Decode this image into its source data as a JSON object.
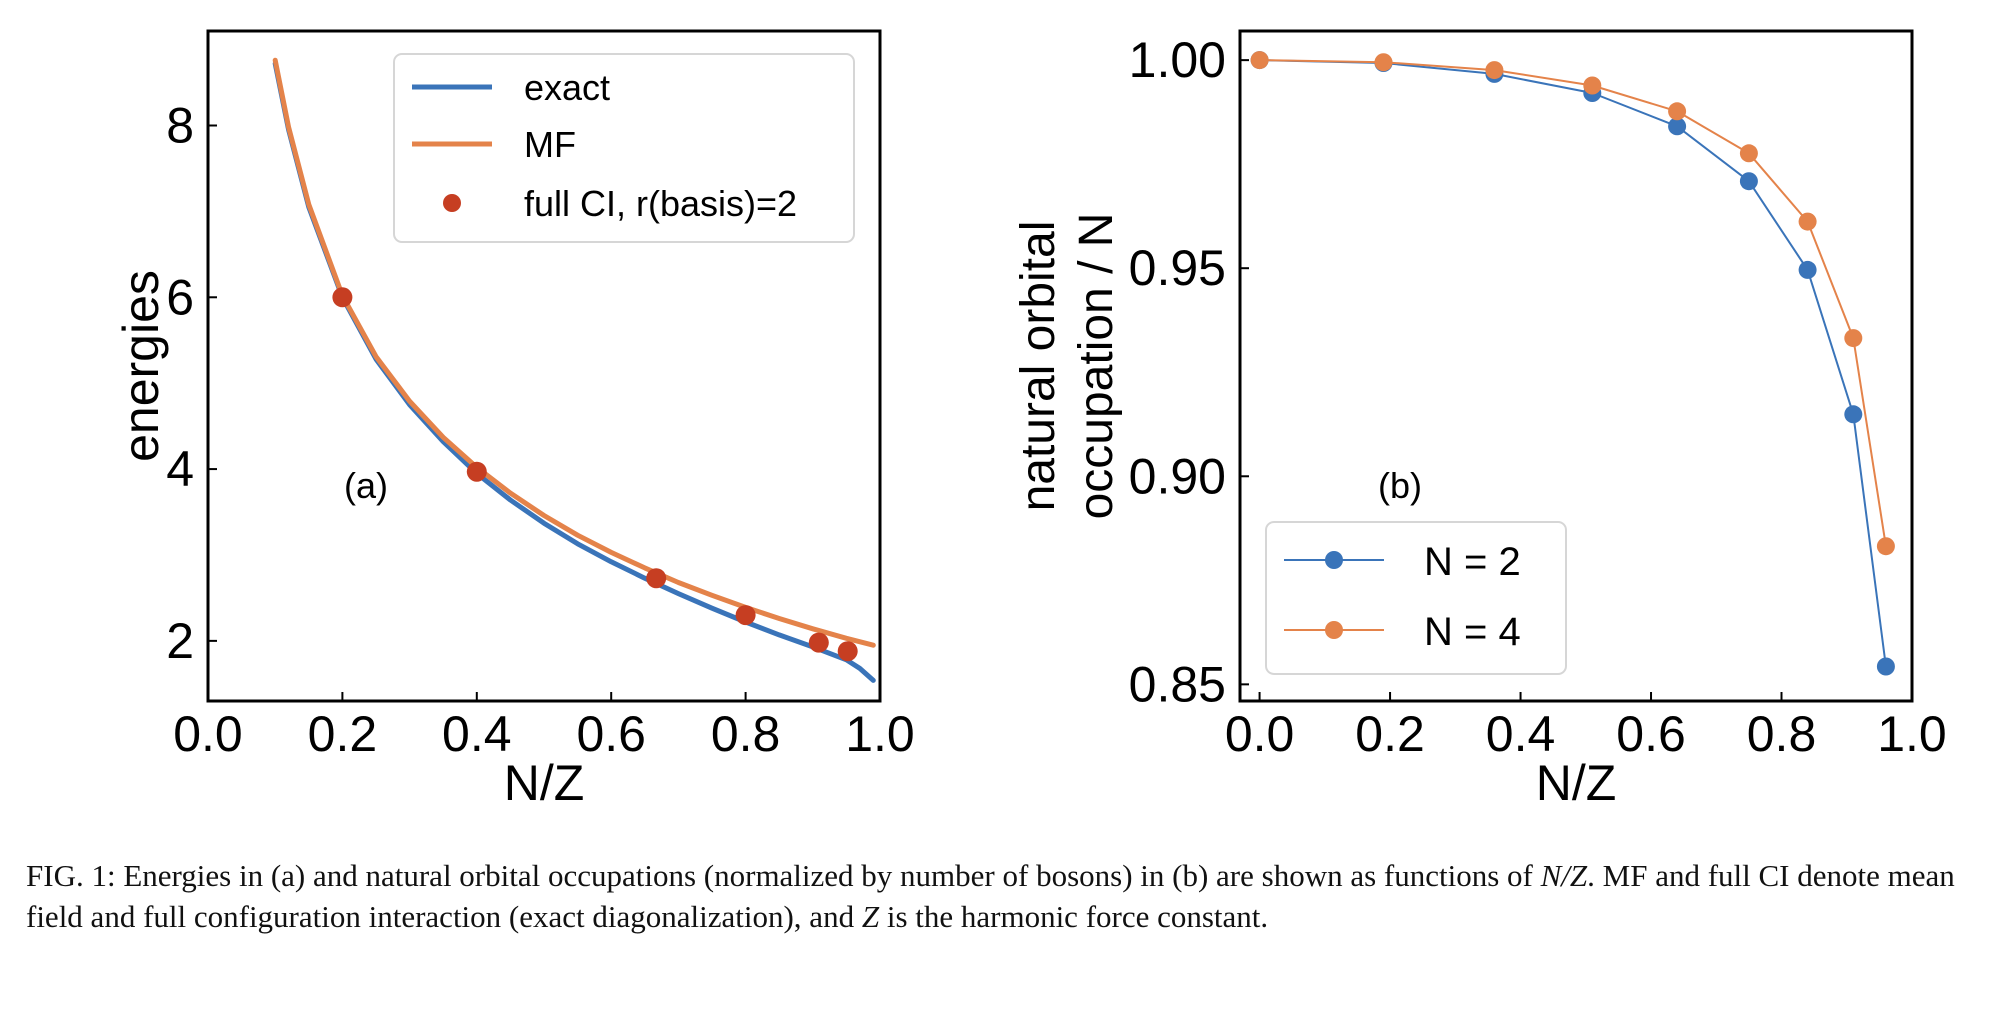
{
  "chart_data": [
    {
      "type": "line",
      "panel_label": "(a)",
      "xlabel": "N/Z",
      "ylabel": "energies",
      "xlim": [
        0.0,
        1.0
      ],
      "ylim": [
        1.3,
        9.1
      ],
      "xticks": [
        0.0,
        0.2,
        0.4,
        0.6,
        0.8,
        1.0
      ],
      "xtick_labels": [
        "0.0",
        "0.2",
        "0.4",
        "0.6",
        "0.8",
        "1.0"
      ],
      "yticks": [
        2,
        4,
        6,
        8
      ],
      "ytick_labels": [
        "2",
        "4",
        "6",
        "8"
      ],
      "legend_position": "top-right",
      "series": [
        {
          "name": "exact",
          "style": "line",
          "color": "#3a74b9",
          "x": [
            0.1,
            0.12,
            0.15,
            0.2,
            0.25,
            0.3,
            0.35,
            0.4,
            0.45,
            0.5,
            0.55,
            0.6,
            0.65,
            0.7,
            0.75,
            0.8,
            0.85,
            0.9,
            0.95,
            0.97,
            0.99
          ],
          "y": [
            8.72,
            7.95,
            7.05,
            6.0,
            5.28,
            4.75,
            4.32,
            3.95,
            3.64,
            3.37,
            3.13,
            2.92,
            2.73,
            2.55,
            2.38,
            2.22,
            2.07,
            1.93,
            1.78,
            1.68,
            1.54
          ]
        },
        {
          "name": "MF",
          "style": "line",
          "color": "#e4834a",
          "x": [
            0.1,
            0.12,
            0.15,
            0.2,
            0.25,
            0.3,
            0.35,
            0.4,
            0.45,
            0.5,
            0.55,
            0.6,
            0.65,
            0.7,
            0.75,
            0.8,
            0.85,
            0.9,
            0.95,
            0.99
          ],
          "y": [
            8.76,
            7.98,
            7.08,
            6.02,
            5.31,
            4.79,
            4.37,
            4.02,
            3.72,
            3.46,
            3.23,
            3.03,
            2.85,
            2.68,
            2.53,
            2.39,
            2.26,
            2.14,
            2.03,
            1.95
          ]
        },
        {
          "name": "full CI, r(basis)=2",
          "style": "markers",
          "color": "#c63e22",
          "x": [
            0.2,
            0.4,
            0.667,
            0.8,
            0.909,
            0.952
          ],
          "y": [
            6.0,
            3.97,
            2.73,
            2.3,
            1.98,
            1.88
          ]
        }
      ]
    },
    {
      "type": "line",
      "panel_label": "(b)",
      "xlabel": "N/Z",
      "ylabel_line1": "natural orbital",
      "ylabel_line2": "occupation / N",
      "xlim": [
        -0.03,
        1.0
      ],
      "ylim": [
        0.846,
        1.007
      ],
      "xticks": [
        0.0,
        0.2,
        0.4,
        0.6,
        0.8,
        1.0
      ],
      "xtick_labels": [
        "0.0",
        "0.2",
        "0.4",
        "0.6",
        "0.8",
        "1.0"
      ],
      "yticks": [
        0.85,
        0.9,
        0.95,
        1.0
      ],
      "ytick_labels": [
        "0.85",
        "0.90",
        "0.95",
        "1.00"
      ],
      "legend_position": "lower-left",
      "series": [
        {
          "name": "N = 2",
          "style": "line-markers",
          "color": "#3a74b9",
          "x": [
            0.0,
            0.19,
            0.36,
            0.51,
            0.64,
            0.75,
            0.84,
            0.91,
            0.96
          ],
          "y": [
            1.0,
            0.9993,
            0.9967,
            0.9921,
            0.9841,
            0.9709,
            0.9496,
            0.9149,
            0.8543
          ]
        },
        {
          "name": "N = 4",
          "style": "line-markers",
          "color": "#e4834a",
          "x": [
            0.0,
            0.19,
            0.36,
            0.51,
            0.64,
            0.75,
            0.84,
            0.91,
            0.96
          ],
          "y": [
            1.0,
            0.9995,
            0.9976,
            0.9939,
            0.9877,
            0.9776,
            0.9612,
            0.9332,
            0.8832
          ]
        }
      ]
    }
  ],
  "caption": {
    "part1": "FIG. 1: Energies in (a) and natural orbital occupations (normalized by number of bosons) in (b) are shown as functions of ",
    "math1": "N/Z",
    "part2": ". MF and full CI denote mean field and full configuration interaction (exact diagonalization), and ",
    "math2": "Z",
    "part3": " is the harmonic force constant."
  }
}
